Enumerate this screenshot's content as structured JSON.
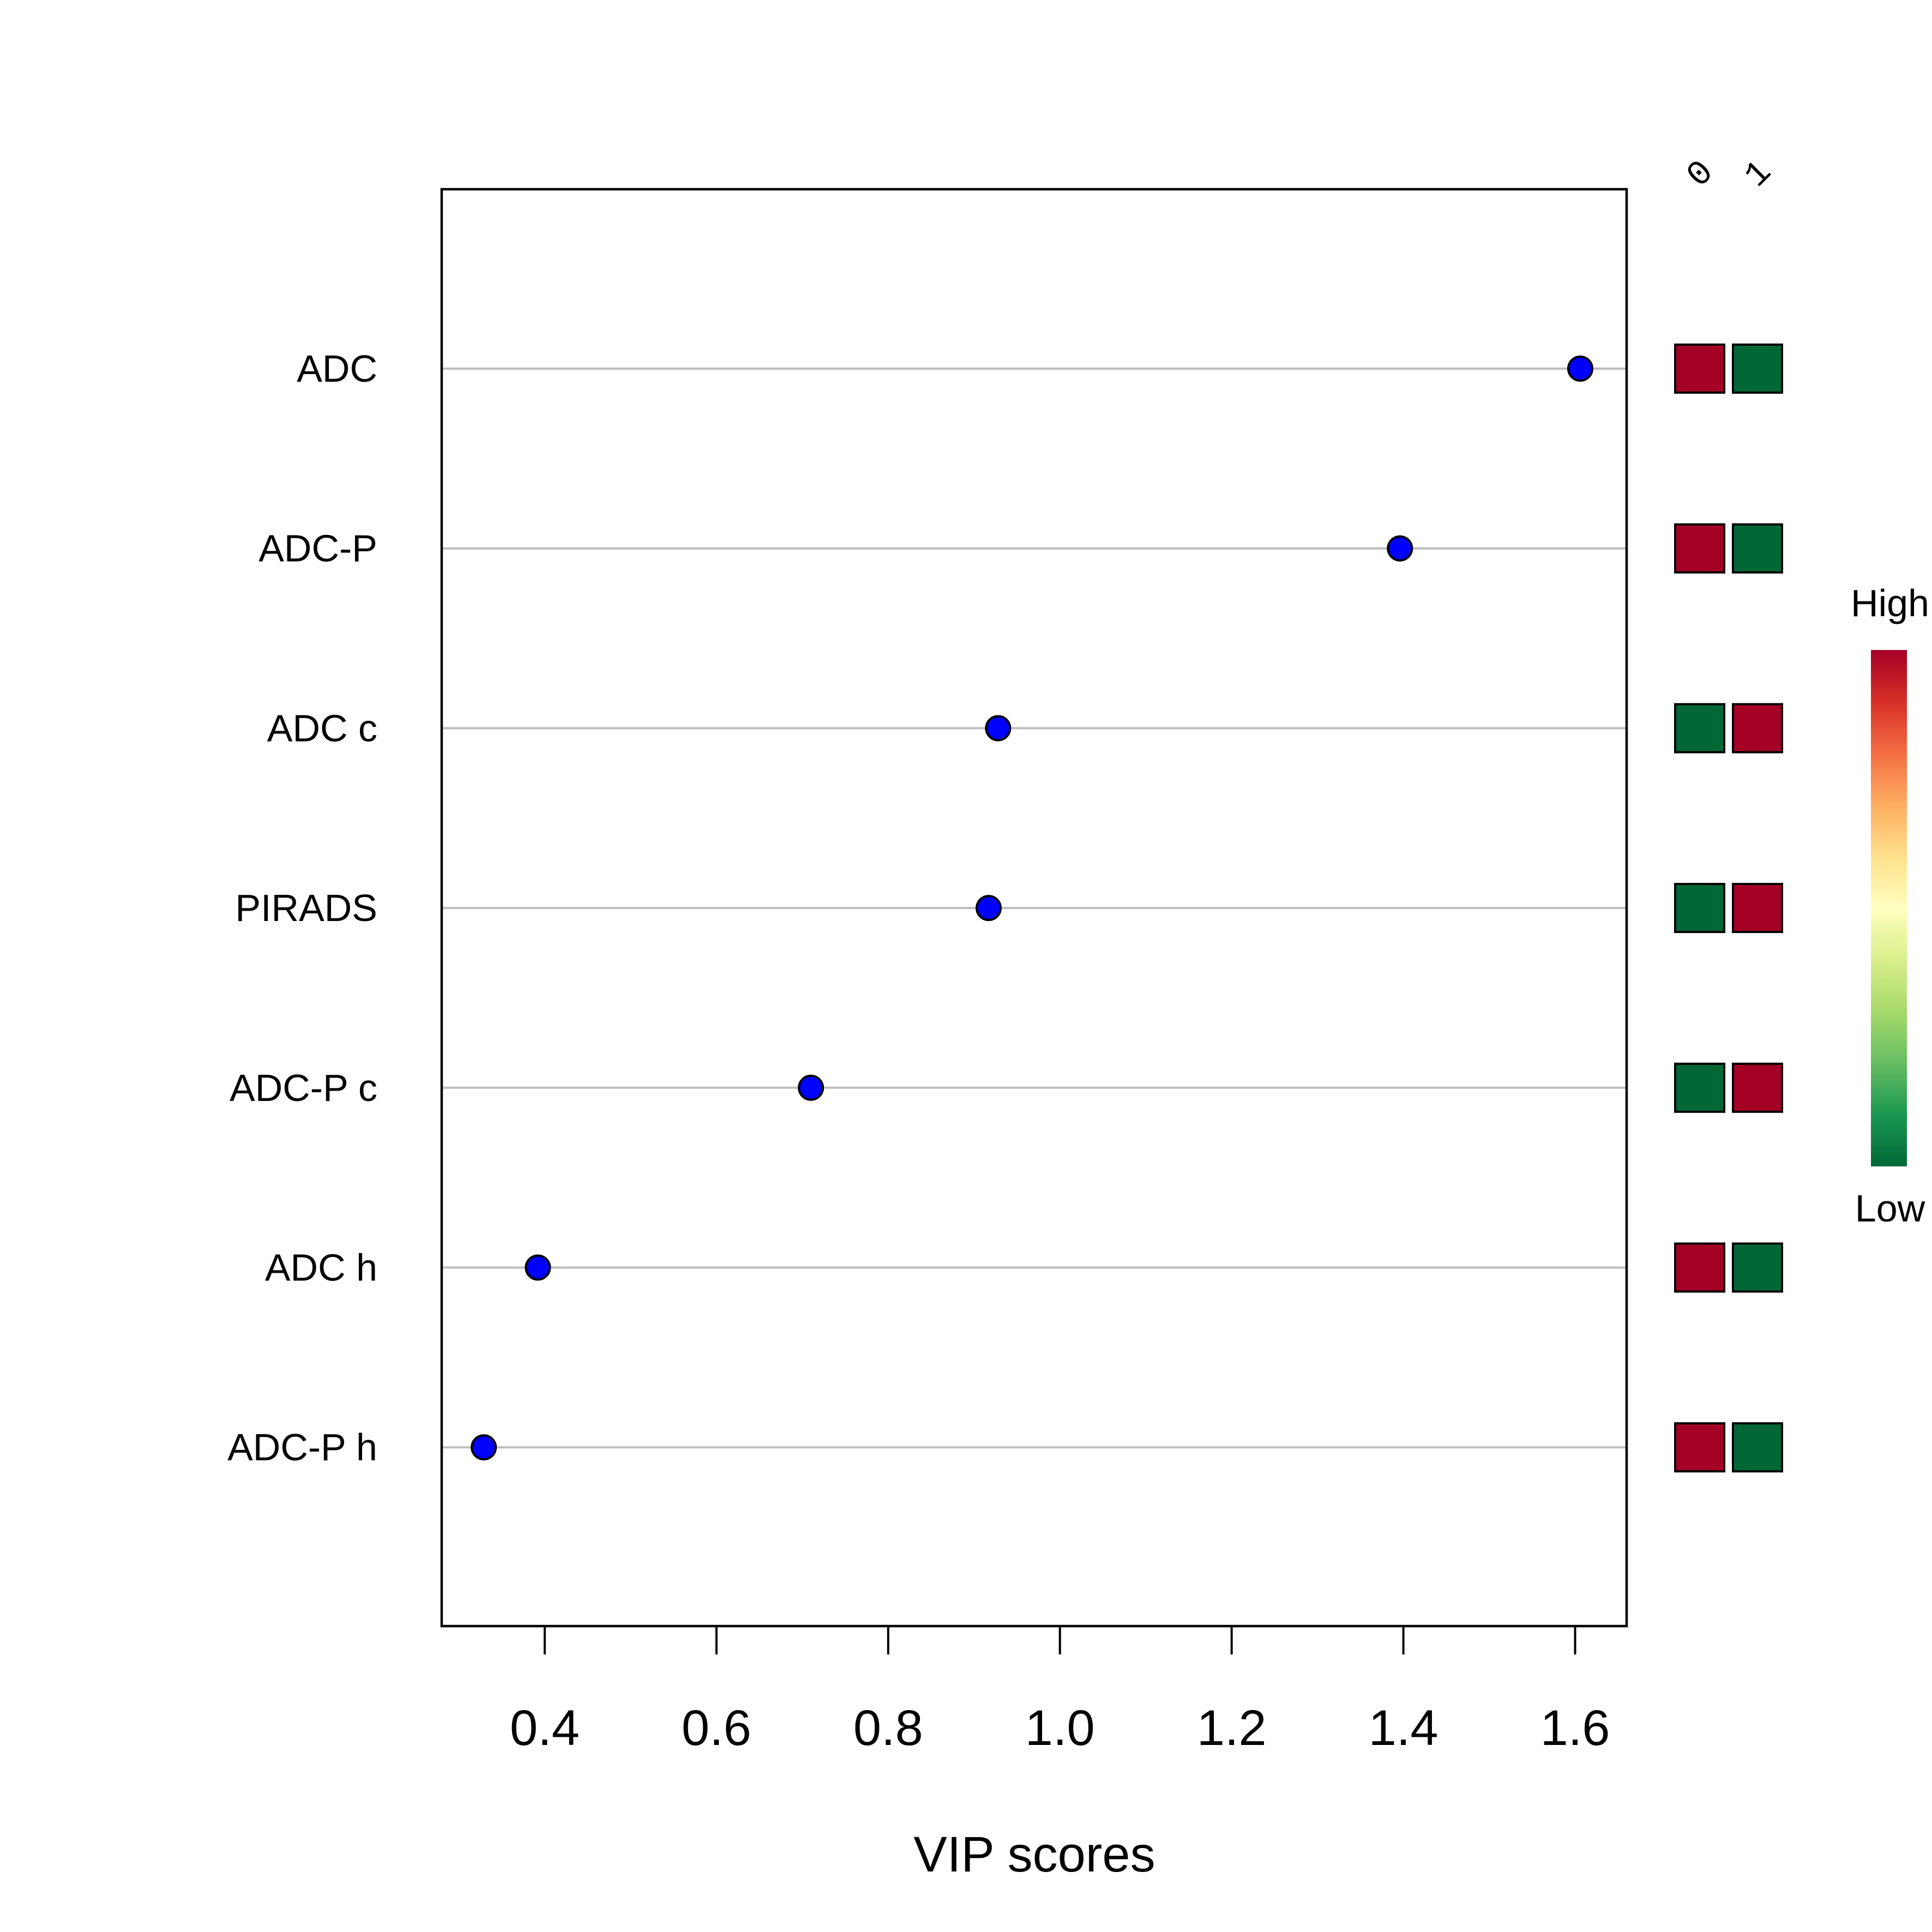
{
  "chart_data": {
    "type": "scatter",
    "title": "",
    "xlabel": "VIP scores",
    "ylabel": "",
    "xlim": [
      0.28,
      1.66
    ],
    "xticks": [
      "0.4",
      "0.6",
      "0.8",
      "1.0",
      "1.2",
      "1.4",
      "1.6"
    ],
    "xtick_values": [
      0.4,
      0.6,
      0.8,
      1.0,
      1.2,
      1.4,
      1.6
    ],
    "grid": true,
    "point_color": "#0000ff",
    "features": [
      "ADC",
      "ADC-P",
      "ADC c",
      "PIRADS",
      "ADC-P c",
      "ADC h",
      "ADC-P h"
    ],
    "vip_scores": [
      1.606,
      1.396,
      0.928,
      0.917,
      0.71,
      0.392,
      0.329
    ],
    "heatmap": {
      "columns": [
        "0",
        "1"
      ],
      "levels": [
        [
          "High",
          "Low"
        ],
        [
          "High",
          "Low"
        ],
        [
          "Low",
          "High"
        ],
        [
          "Low",
          "High"
        ],
        [
          "Low",
          "High"
        ],
        [
          "High",
          "Low"
        ],
        [
          "High",
          "Low"
        ]
      ],
      "colors": {
        "High": "#a50026",
        "Low": "#006837"
      }
    },
    "legend": {
      "high_label": "High",
      "low_label": "Low",
      "placement": "right",
      "gradient": [
        "#006837",
        "#1a9850",
        "#66bd63",
        "#a6d96a",
        "#d9ef8b",
        "#ffffbf",
        "#fee08b",
        "#fdae61",
        "#f46d43",
        "#d73027",
        "#a50026"
      ]
    }
  }
}
